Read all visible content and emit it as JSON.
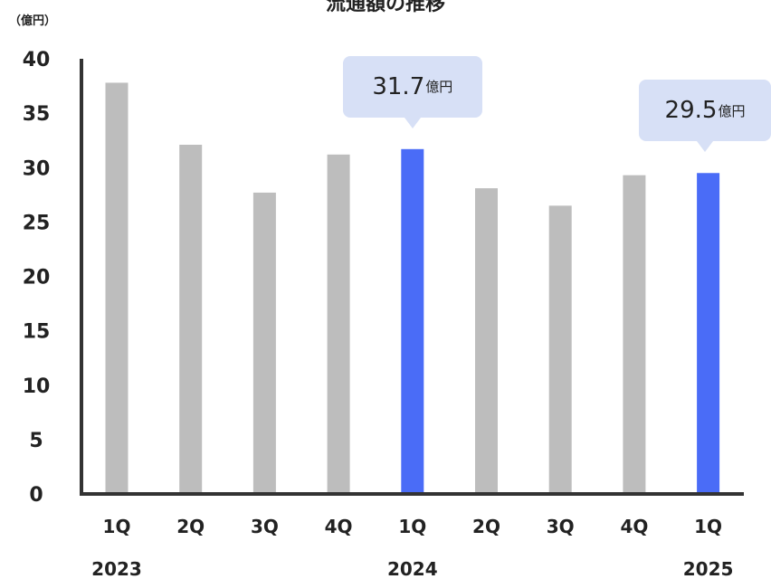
{
  "chart_data": {
    "type": "bar",
    "title": "流通額の推移",
    "unit_label": "（億円）",
    "ylim": [
      0,
      40
    ],
    "yticks": [
      0,
      5,
      10,
      15,
      20,
      25,
      30,
      35,
      40
    ],
    "categories": [
      "1Q",
      "2Q",
      "3Q",
      "4Q",
      "1Q",
      "2Q",
      "3Q",
      "4Q",
      "1Q"
    ],
    "years": [
      "2023",
      "2024",
      "2025"
    ],
    "values": [
      37.8,
      32.1,
      27.7,
      31.2,
      31.7,
      28.1,
      26.5,
      29.3,
      29.5
    ],
    "highlight_indices": [
      4,
      8
    ],
    "colors": {
      "normal": "#bdbdbd",
      "highlight": "#4a6cf7",
      "callout_bg": "#d7e0f6",
      "axis": "#333333"
    },
    "callouts": [
      {
        "index": 4,
        "value": "31.7",
        "unit": "億円"
      },
      {
        "index": 8,
        "value": "29.5",
        "unit": "億円"
      }
    ]
  }
}
